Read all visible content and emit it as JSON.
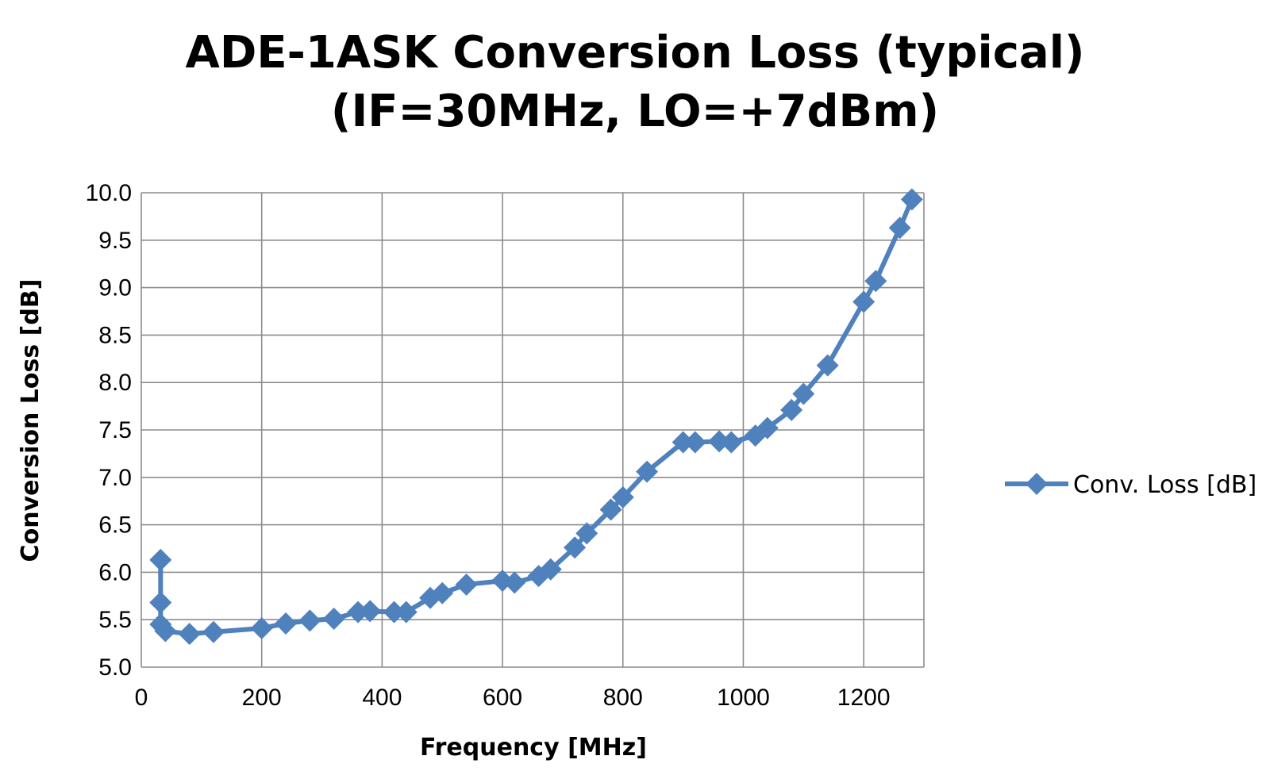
{
  "chart_data": {
    "type": "line",
    "title_line1": "ADE-1ASK Conversion Loss (typical)",
    "title_line2": "(IF=30MHz, LO=+7dBm)",
    "xlabel": "Frequency [MHz]",
    "ylabel": "Conversion Loss [dB]",
    "xlim": [
      0,
      1300
    ],
    "ylim": [
      5.0,
      10.0
    ],
    "x_ticks": [
      0,
      200,
      400,
      600,
      800,
      1000,
      1200
    ],
    "y_ticks": [
      "5.0",
      "5.5",
      "6.0",
      "6.5",
      "7.0",
      "7.5",
      "8.0",
      "8.5",
      "9.0",
      "9.5",
      "10.0"
    ],
    "grid": true,
    "legend_position": "right",
    "series": [
      {
        "name": "Conv. Loss [dB]",
        "color": "#4F81BD",
        "marker": "diamond",
        "x": [
          32,
          32,
          32,
          40,
          80,
          120,
          200,
          240,
          280,
          320,
          360,
          380,
          420,
          440,
          480,
          500,
          540,
          600,
          620,
          660,
          680,
          720,
          740,
          780,
          800,
          840,
          900,
          920,
          960,
          980,
          1020,
          1040,
          1080,
          1100,
          1140,
          1200,
          1220,
          1260,
          1280
        ],
        "y": [
          6.13,
          5.68,
          5.45,
          5.38,
          5.35,
          5.37,
          5.41,
          5.46,
          5.49,
          5.51,
          5.58,
          5.59,
          5.58,
          5.58,
          5.73,
          5.78,
          5.87,
          5.91,
          5.89,
          5.96,
          6.03,
          6.26,
          6.41,
          6.66,
          6.79,
          7.06,
          7.37,
          7.37,
          7.38,
          7.37,
          7.44,
          7.52,
          7.71,
          7.88,
          8.18,
          8.85,
          9.07,
          9.63,
          9.93
        ]
      }
    ]
  }
}
